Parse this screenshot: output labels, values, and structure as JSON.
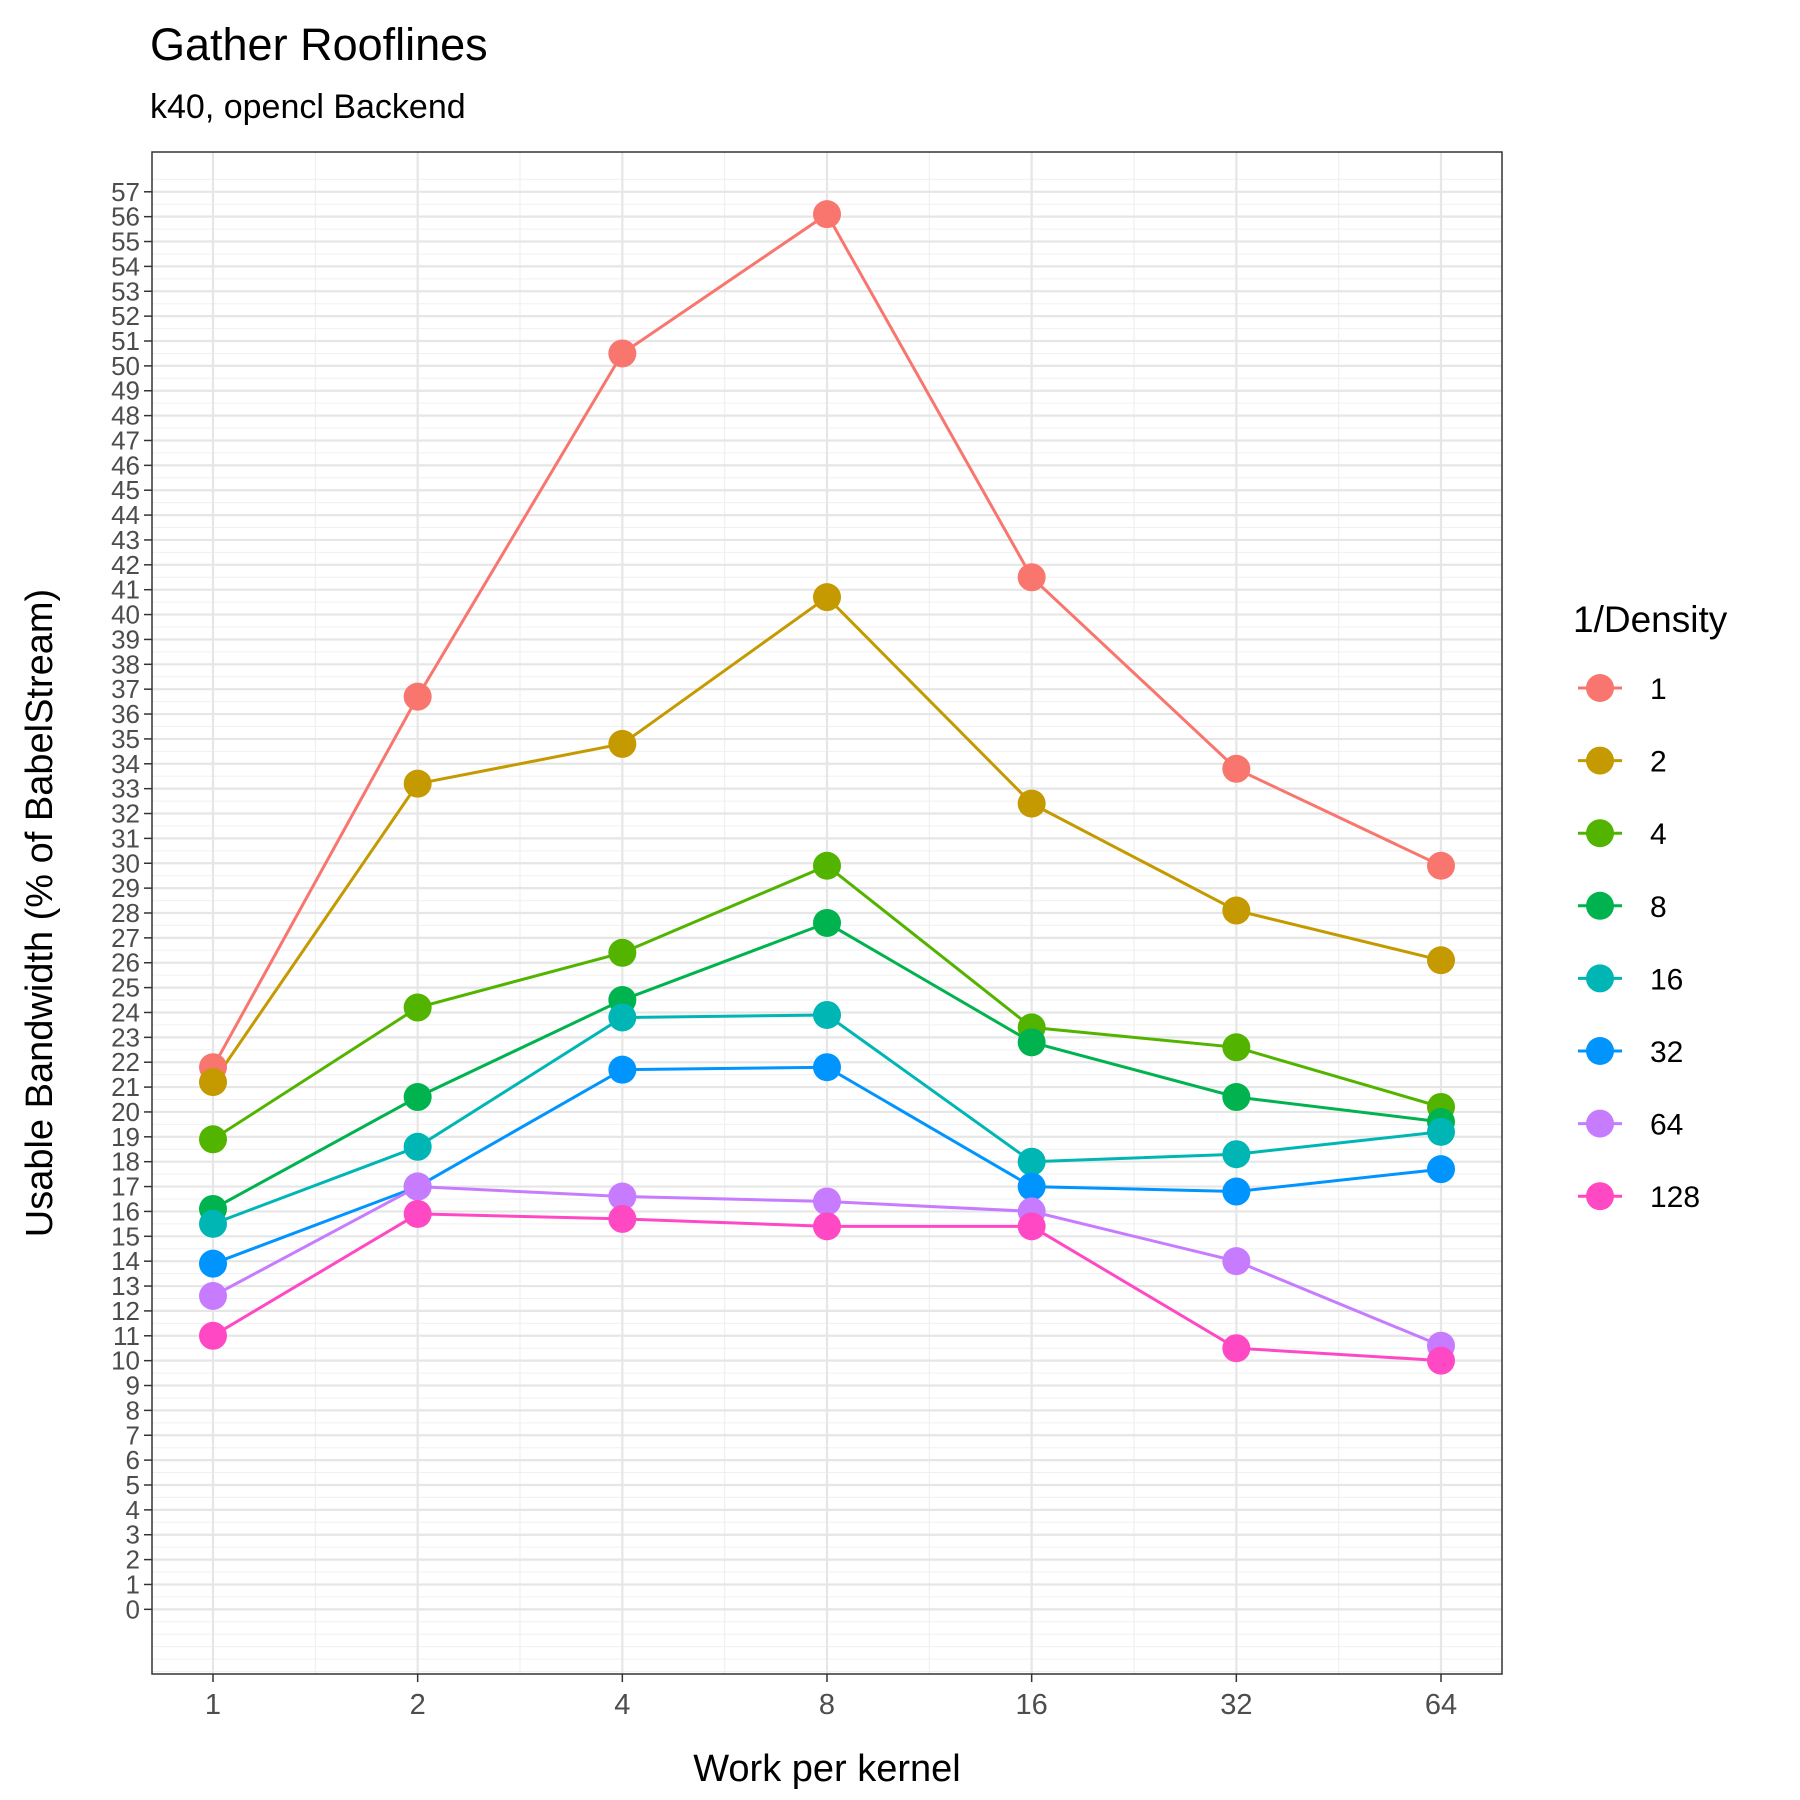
{
  "chart_data": {
    "type": "line",
    "title": "Gather Rooflines",
    "subtitle": "k40, opencl Backend",
    "xlabel": "Work per kernel",
    "ylabel": "Usable Bandwidth (% of BabelStream)",
    "x": [
      1,
      2,
      4,
      8,
      16,
      32,
      64
    ],
    "x_tick_labels": [
      "1",
      "2",
      "4",
      "8",
      "16",
      "32",
      "64"
    ],
    "x_scale": "log2",
    "ylim": [
      -2.6,
      58.6
    ],
    "y_tick_labels": [
      "0",
      "1",
      "2",
      "3",
      "4",
      "5",
      "6",
      "7",
      "8",
      "9",
      "10",
      "11",
      "12",
      "13",
      "14",
      "15",
      "16",
      "17",
      "18",
      "19",
      "20",
      "21",
      "22",
      "23",
      "24",
      "25",
      "26",
      "27",
      "28",
      "29",
      "30",
      "31",
      "32",
      "33",
      "34",
      "35",
      "36",
      "37",
      "38",
      "39",
      "40",
      "41",
      "42",
      "43",
      "44",
      "45",
      "46",
      "47",
      "48",
      "49",
      "50",
      "51",
      "52",
      "53",
      "54",
      "55",
      "56",
      "57"
    ],
    "grid": true,
    "legend": {
      "title": "1/Density",
      "position": "right"
    },
    "series": [
      {
        "name": "1",
        "color": "#F8766D",
        "values": [
          21.8,
          36.7,
          50.5,
          56.1,
          41.5,
          33.8,
          29.9
        ]
      },
      {
        "name": "2",
        "color": "#C49A00",
        "values": [
          21.2,
          33.2,
          34.8,
          40.7,
          32.4,
          28.1,
          26.1
        ]
      },
      {
        "name": "4",
        "color": "#53B400",
        "values": [
          18.9,
          24.2,
          26.4,
          29.9,
          23.4,
          22.6,
          20.2
        ]
      },
      {
        "name": "8",
        "color": "#00B34F",
        "values": [
          16.1,
          20.6,
          24.5,
          27.6,
          22.8,
          20.6,
          19.6
        ]
      },
      {
        "name": "16",
        "color": "#00B6B5",
        "values": [
          15.5,
          18.6,
          23.8,
          23.9,
          18.0,
          18.3,
          19.2
        ]
      },
      {
        "name": "32",
        "color": "#0094FF",
        "values": [
          13.9,
          17.0,
          21.7,
          21.8,
          17.0,
          16.8,
          17.7
        ]
      },
      {
        "name": "64",
        "color": "#C77CFF",
        "values": [
          12.6,
          17.0,
          16.6,
          16.4,
          16.0,
          14.0,
          10.6
        ]
      },
      {
        "name": "128",
        "color": "#FF49C4",
        "values": [
          11.0,
          15.9,
          15.7,
          15.4,
          15.4,
          10.5,
          10.0
        ]
      }
    ]
  }
}
